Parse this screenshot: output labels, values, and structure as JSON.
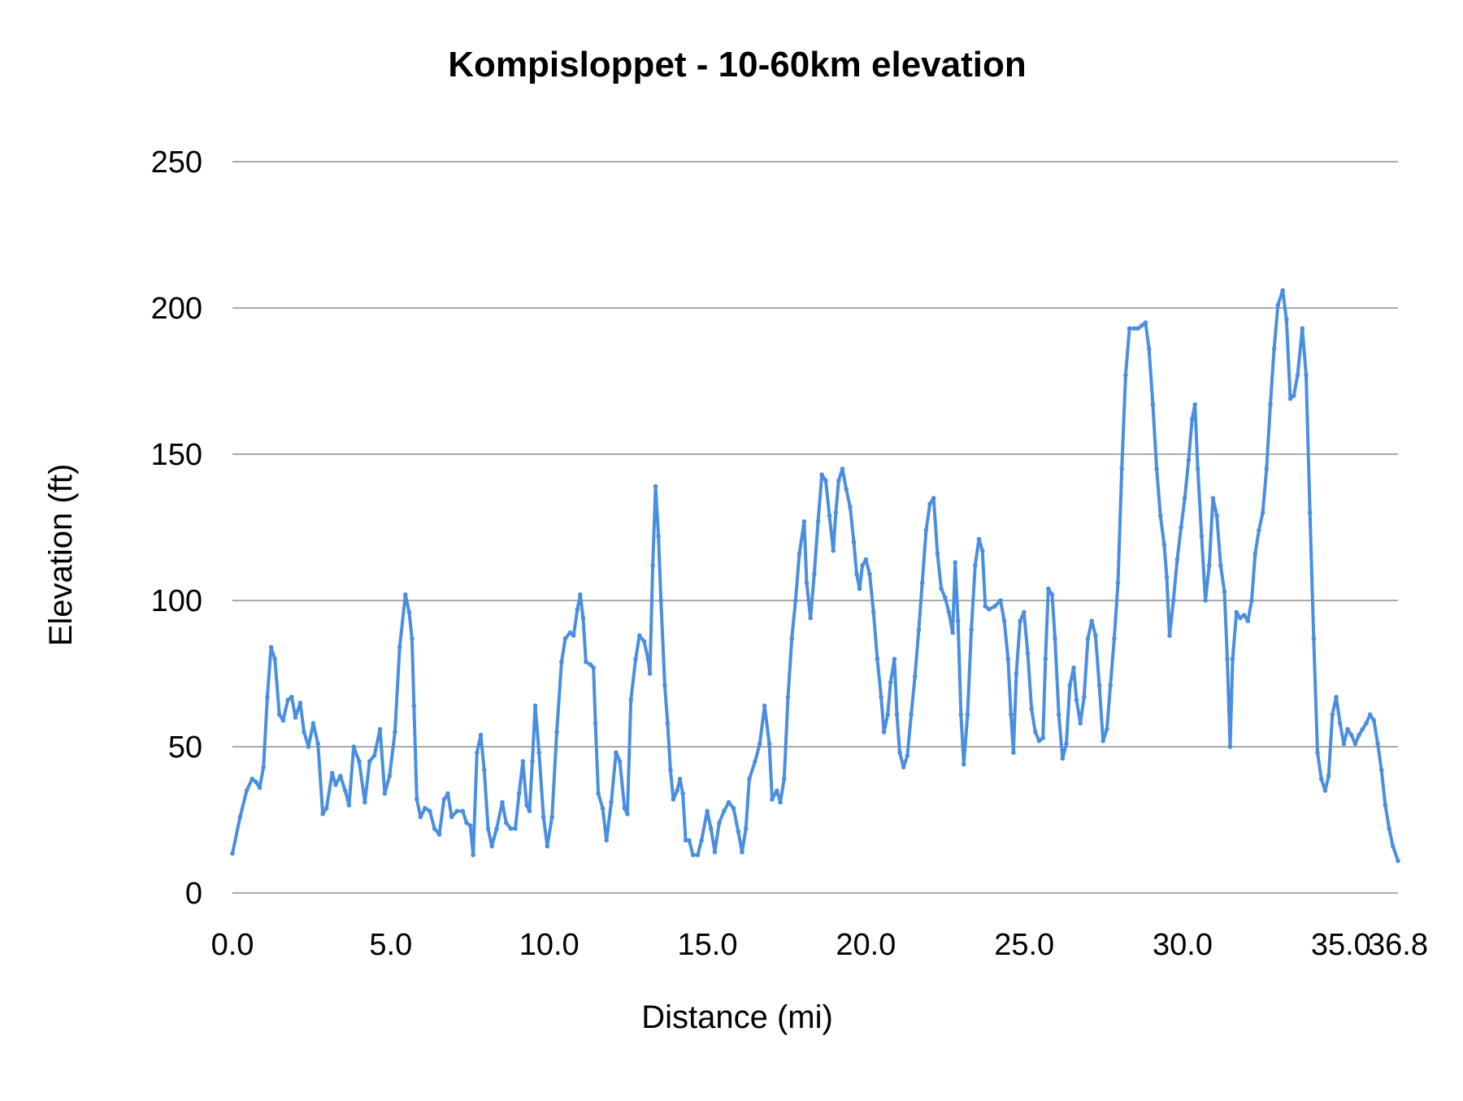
{
  "chart_data": {
    "type": "line",
    "title": "Kompisloppet - 10-60km elevation",
    "xlabel": "Distance (mi)",
    "ylabel": "Elevation (ft)",
    "xlim": [
      0,
      36.8
    ],
    "ylim": [
      0,
      250
    ],
    "x_ticks": [
      "0.0",
      "5.0",
      "10.0",
      "15.0",
      "20.0",
      "25.0",
      "30.0",
      "35.0",
      "36.8"
    ],
    "x_tick_values": [
      0,
      5,
      10,
      15,
      20,
      25,
      30,
      35,
      36.8
    ],
    "y_ticks": [
      "0",
      "50",
      "100",
      "150",
      "200",
      "250"
    ],
    "y_tick_values": [
      0,
      50,
      100,
      150,
      200,
      250
    ],
    "grid": "horizontal",
    "legend": "none",
    "color": "#4a8ee0",
    "series": [
      {
        "points": [
          [
            0,
            13.5
          ],
          [
            0.24,
            26
          ],
          [
            0.45,
            35
          ],
          [
            0.62,
            39
          ],
          [
            0.74,
            38
          ],
          [
            0.86,
            36
          ],
          [
            0.98,
            43
          ],
          [
            1.1,
            67
          ],
          [
            1.22,
            84
          ],
          [
            1.34,
            80
          ],
          [
            1.48,
            61
          ],
          [
            1.6,
            59
          ],
          [
            1.75,
            66
          ],
          [
            1.87,
            67
          ],
          [
            1.99,
            60
          ],
          [
            2.14,
            65
          ],
          [
            2.26,
            55
          ],
          [
            2.4,
            50
          ],
          [
            2.55,
            58
          ],
          [
            2.7,
            51
          ],
          [
            2.85,
            27
          ],
          [
            2.97,
            29
          ],
          [
            3.15,
            41
          ],
          [
            3.26,
            37
          ],
          [
            3.41,
            40
          ],
          [
            3.56,
            35
          ],
          [
            3.68,
            30
          ],
          [
            3.83,
            50
          ],
          [
            4.0,
            45
          ],
          [
            4.18,
            31
          ],
          [
            4.33,
            45
          ],
          [
            4.48,
            47
          ],
          [
            4.66,
            56
          ],
          [
            4.81,
            34
          ],
          [
            4.96,
            40
          ],
          [
            5.13,
            55
          ],
          [
            5.28,
            84
          ],
          [
            5.46,
            102
          ],
          [
            5.58,
            96
          ],
          [
            5.67,
            87
          ],
          [
            5.73,
            64
          ],
          [
            5.82,
            32
          ],
          [
            5.94,
            26
          ],
          [
            6.08,
            29
          ],
          [
            6.23,
            28
          ],
          [
            6.38,
            22
          ],
          [
            6.53,
            20
          ],
          [
            6.68,
            32
          ],
          [
            6.8,
            34
          ],
          [
            6.92,
            26
          ],
          [
            7.09,
            28
          ],
          [
            7.27,
            28
          ],
          [
            7.39,
            24
          ],
          [
            7.51,
            23
          ],
          [
            7.6,
            13
          ],
          [
            7.72,
            48
          ],
          [
            7.84,
            54
          ],
          [
            7.95,
            42
          ],
          [
            8.07,
            22
          ],
          [
            8.19,
            16
          ],
          [
            8.34,
            22
          ],
          [
            8.52,
            31
          ],
          [
            8.64,
            24
          ],
          [
            8.79,
            22
          ],
          [
            8.93,
            22
          ],
          [
            9.05,
            34
          ],
          [
            9.17,
            45
          ],
          [
            9.29,
            30
          ],
          [
            9.38,
            28
          ],
          [
            9.47,
            45
          ],
          [
            9.56,
            64
          ],
          [
            9.68,
            48
          ],
          [
            9.82,
            26
          ],
          [
            9.94,
            16
          ],
          [
            10.09,
            26
          ],
          [
            10.24,
            55
          ],
          [
            10.39,
            79
          ],
          [
            10.51,
            87
          ],
          [
            10.66,
            89
          ],
          [
            10.77,
            88
          ],
          [
            10.89,
            97
          ],
          [
            10.98,
            102
          ],
          [
            11.07,
            94
          ],
          [
            11.16,
            79
          ],
          [
            11.31,
            78
          ],
          [
            11.4,
            77
          ],
          [
            11.46,
            58
          ],
          [
            11.55,
            34
          ],
          [
            11.69,
            29
          ],
          [
            11.81,
            18
          ],
          [
            11.96,
            31
          ],
          [
            12.11,
            48
          ],
          [
            12.23,
            45
          ],
          [
            12.38,
            29
          ],
          [
            12.47,
            27
          ],
          [
            12.58,
            66
          ],
          [
            12.73,
            80
          ],
          [
            12.85,
            88
          ],
          [
            13.0,
            86
          ],
          [
            13.12,
            80
          ],
          [
            13.18,
            75
          ],
          [
            13.27,
            112
          ],
          [
            13.36,
            139
          ],
          [
            13.45,
            122
          ],
          [
            13.53,
            100
          ],
          [
            13.65,
            71
          ],
          [
            13.74,
            58
          ],
          [
            13.83,
            42
          ],
          [
            13.92,
            32
          ],
          [
            14.04,
            35
          ],
          [
            14.13,
            39
          ],
          [
            14.22,
            34
          ],
          [
            14.31,
            18
          ],
          [
            14.42,
            18
          ],
          [
            14.54,
            13
          ],
          [
            14.69,
            13
          ],
          [
            14.81,
            18
          ],
          [
            14.99,
            28
          ],
          [
            15.11,
            22
          ],
          [
            15.23,
            14
          ],
          [
            15.37,
            24
          ],
          [
            15.52,
            28
          ],
          [
            15.67,
            31
          ],
          [
            15.82,
            29
          ],
          [
            15.97,
            21
          ],
          [
            16.09,
            14
          ],
          [
            16.21,
            22
          ],
          [
            16.32,
            39
          ],
          [
            16.5,
            45
          ],
          [
            16.65,
            51
          ],
          [
            16.8,
            64
          ],
          [
            16.95,
            51
          ],
          [
            17.04,
            32
          ],
          [
            17.19,
            35
          ],
          [
            17.3,
            31
          ],
          [
            17.42,
            39
          ],
          [
            17.54,
            67
          ],
          [
            17.66,
            87
          ],
          [
            17.78,
            100
          ],
          [
            17.9,
            116
          ],
          [
            18.05,
            127
          ],
          [
            18.13,
            106
          ],
          [
            18.25,
            94
          ],
          [
            18.37,
            109
          ],
          [
            18.49,
            127
          ],
          [
            18.61,
            143
          ],
          [
            18.73,
            141
          ],
          [
            18.85,
            129
          ],
          [
            18.97,
            117
          ],
          [
            19.05,
            130
          ],
          [
            19.14,
            141
          ],
          [
            19.26,
            145
          ],
          [
            19.38,
            138
          ],
          [
            19.5,
            132
          ],
          [
            19.62,
            120
          ],
          [
            19.71,
            109
          ],
          [
            19.8,
            104
          ],
          [
            19.89,
            112
          ],
          [
            20.0,
            114
          ],
          [
            20.12,
            109
          ],
          [
            20.24,
            96
          ],
          [
            20.36,
            80
          ],
          [
            20.48,
            67
          ],
          [
            20.57,
            55
          ],
          [
            20.69,
            61
          ],
          [
            20.78,
            72
          ],
          [
            20.9,
            80
          ],
          [
            20.98,
            61
          ],
          [
            21.07,
            48
          ],
          [
            21.19,
            43
          ],
          [
            21.31,
            47
          ],
          [
            21.43,
            61
          ],
          [
            21.55,
            74
          ],
          [
            21.67,
            90
          ],
          [
            21.78,
            106
          ],
          [
            21.9,
            124
          ],
          [
            22.02,
            133
          ],
          [
            22.14,
            135
          ],
          [
            22.26,
            116
          ],
          [
            22.38,
            104
          ],
          [
            22.5,
            101
          ],
          [
            22.62,
            96
          ],
          [
            22.74,
            89
          ],
          [
            22.82,
            113
          ],
          [
            22.91,
            93
          ],
          [
            23.0,
            61
          ],
          [
            23.09,
            44
          ],
          [
            23.21,
            61
          ],
          [
            23.33,
            90
          ],
          [
            23.45,
            112
          ],
          [
            23.57,
            121
          ],
          [
            23.68,
            117
          ],
          [
            23.77,
            98
          ],
          [
            23.89,
            97
          ],
          [
            24.07,
            98
          ],
          [
            24.25,
            100
          ],
          [
            24.37,
            93
          ],
          [
            24.49,
            80
          ],
          [
            24.58,
            61
          ],
          [
            24.66,
            48
          ],
          [
            24.75,
            75
          ],
          [
            24.87,
            93
          ],
          [
            24.99,
            96
          ],
          [
            25.11,
            82
          ],
          [
            25.23,
            63
          ],
          [
            25.35,
            55
          ],
          [
            25.47,
            52
          ],
          [
            25.59,
            53
          ],
          [
            25.67,
            80
          ],
          [
            25.76,
            104
          ],
          [
            25.88,
            102
          ],
          [
            25.97,
            87
          ],
          [
            26.09,
            61
          ],
          [
            26.21,
            46
          ],
          [
            26.33,
            51
          ],
          [
            26.44,
            71
          ],
          [
            26.56,
            77
          ],
          [
            26.65,
            66
          ],
          [
            26.77,
            58
          ],
          [
            26.89,
            67
          ],
          [
            27.01,
            87
          ],
          [
            27.13,
            93
          ],
          [
            27.25,
            88
          ],
          [
            27.37,
            71
          ],
          [
            27.49,
            52
          ],
          [
            27.61,
            56
          ],
          [
            27.72,
            71
          ],
          [
            27.84,
            87
          ],
          [
            27.96,
            106
          ],
          [
            28.08,
            145
          ],
          [
            28.2,
            177
          ],
          [
            28.32,
            193
          ],
          [
            28.47,
            193
          ],
          [
            28.59,
            193
          ],
          [
            28.71,
            194
          ],
          [
            28.83,
            195
          ],
          [
            28.94,
            186
          ],
          [
            29.06,
            167
          ],
          [
            29.18,
            145
          ],
          [
            29.3,
            129
          ],
          [
            29.42,
            119
          ],
          [
            29.5,
            108
          ],
          [
            29.59,
            88
          ],
          [
            29.71,
            100
          ],
          [
            29.83,
            114
          ],
          [
            29.95,
            125
          ],
          [
            30.07,
            135
          ],
          [
            30.19,
            148
          ],
          [
            30.3,
            162
          ],
          [
            30.39,
            167
          ],
          [
            30.48,
            145
          ],
          [
            30.6,
            122
          ],
          [
            30.72,
            100
          ],
          [
            30.84,
            112
          ],
          [
            30.96,
            135
          ],
          [
            31.08,
            129
          ],
          [
            31.2,
            112
          ],
          [
            31.32,
            103
          ],
          [
            31.41,
            80
          ],
          [
            31.5,
            50
          ],
          [
            31.58,
            80
          ],
          [
            31.7,
            96
          ],
          [
            31.82,
            94
          ],
          [
            31.94,
            95
          ],
          [
            32.06,
            93
          ],
          [
            32.18,
            100
          ],
          [
            32.29,
            116
          ],
          [
            32.41,
            124
          ],
          [
            32.53,
            130
          ],
          [
            32.65,
            145
          ],
          [
            32.77,
            167
          ],
          [
            32.89,
            186
          ],
          [
            33.01,
            201
          ],
          [
            33.16,
            206
          ],
          [
            33.28,
            196
          ],
          [
            33.4,
            169
          ],
          [
            33.51,
            170
          ],
          [
            33.63,
            177
          ],
          [
            33.78,
            193
          ],
          [
            33.9,
            177
          ],
          [
            34.02,
            130
          ],
          [
            34.14,
            87
          ],
          [
            34.26,
            48
          ],
          [
            34.38,
            39
          ],
          [
            34.5,
            35
          ],
          [
            34.61,
            40
          ],
          [
            34.73,
            61
          ],
          [
            34.85,
            67
          ],
          [
            34.97,
            58
          ],
          [
            35.09,
            51
          ],
          [
            35.21,
            56
          ],
          [
            35.33,
            54
          ],
          [
            35.45,
            51
          ],
          [
            35.57,
            54
          ],
          [
            35.68,
            56
          ],
          [
            35.8,
            58
          ],
          [
            35.92,
            61
          ],
          [
            36.04,
            59
          ],
          [
            36.16,
            51
          ],
          [
            36.28,
            42
          ],
          [
            36.4,
            30
          ],
          [
            36.52,
            22
          ],
          [
            36.64,
            16
          ],
          [
            36.8,
            11
          ]
        ]
      }
    ]
  }
}
